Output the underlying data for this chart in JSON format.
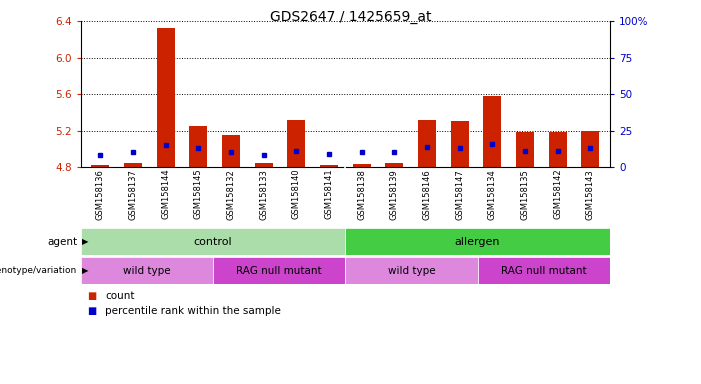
{
  "title": "GDS2647 / 1425659_at",
  "samples": [
    "GSM158136",
    "GSM158137",
    "GSM158144",
    "GSM158145",
    "GSM158132",
    "GSM158133",
    "GSM158140",
    "GSM158141",
    "GSM158138",
    "GSM158139",
    "GSM158146",
    "GSM158147",
    "GSM158134",
    "GSM158135",
    "GSM158142",
    "GSM158143"
  ],
  "count_values": [
    4.82,
    4.84,
    6.32,
    5.25,
    5.15,
    4.84,
    5.32,
    4.82,
    4.83,
    4.84,
    5.32,
    5.3,
    5.58,
    5.18,
    5.18,
    5.2
  ],
  "percentile_values": [
    8,
    10,
    15,
    13,
    10,
    8,
    11,
    9,
    10,
    10,
    14,
    13,
    16,
    11,
    11,
    13
  ],
  "ymin": 4.8,
  "ymax": 6.4,
  "yticks_left": [
    4.8,
    5.2,
    5.6,
    6.0,
    6.4
  ],
  "yticks_right": [
    0,
    25,
    50,
    75,
    100
  ],
  "agent_groups": [
    {
      "label": "control",
      "start": 0,
      "end": 8,
      "color": "#aaddaa"
    },
    {
      "label": "allergen",
      "start": 8,
      "end": 16,
      "color": "#44cc44"
    }
  ],
  "genotype_groups": [
    {
      "label": "wild type",
      "start": 0,
      "end": 4,
      "color": "#dd88dd"
    },
    {
      "label": "RAG null mutant",
      "start": 4,
      "end": 8,
      "color": "#cc44cc"
    },
    {
      "label": "wild type",
      "start": 8,
      "end": 12,
      "color": "#dd88dd"
    },
    {
      "label": "RAG null mutant",
      "start": 12,
      "end": 16,
      "color": "#cc44cc"
    }
  ],
  "bar_color_red": "#cc2200",
  "bar_color_blue": "#0000cc",
  "tick_color_left": "#cc2200",
  "tick_color_right": "#0000cc",
  "sample_bg_color": "#cccccc",
  "fig_width": 7.01,
  "fig_height": 3.84,
  "dpi": 100
}
